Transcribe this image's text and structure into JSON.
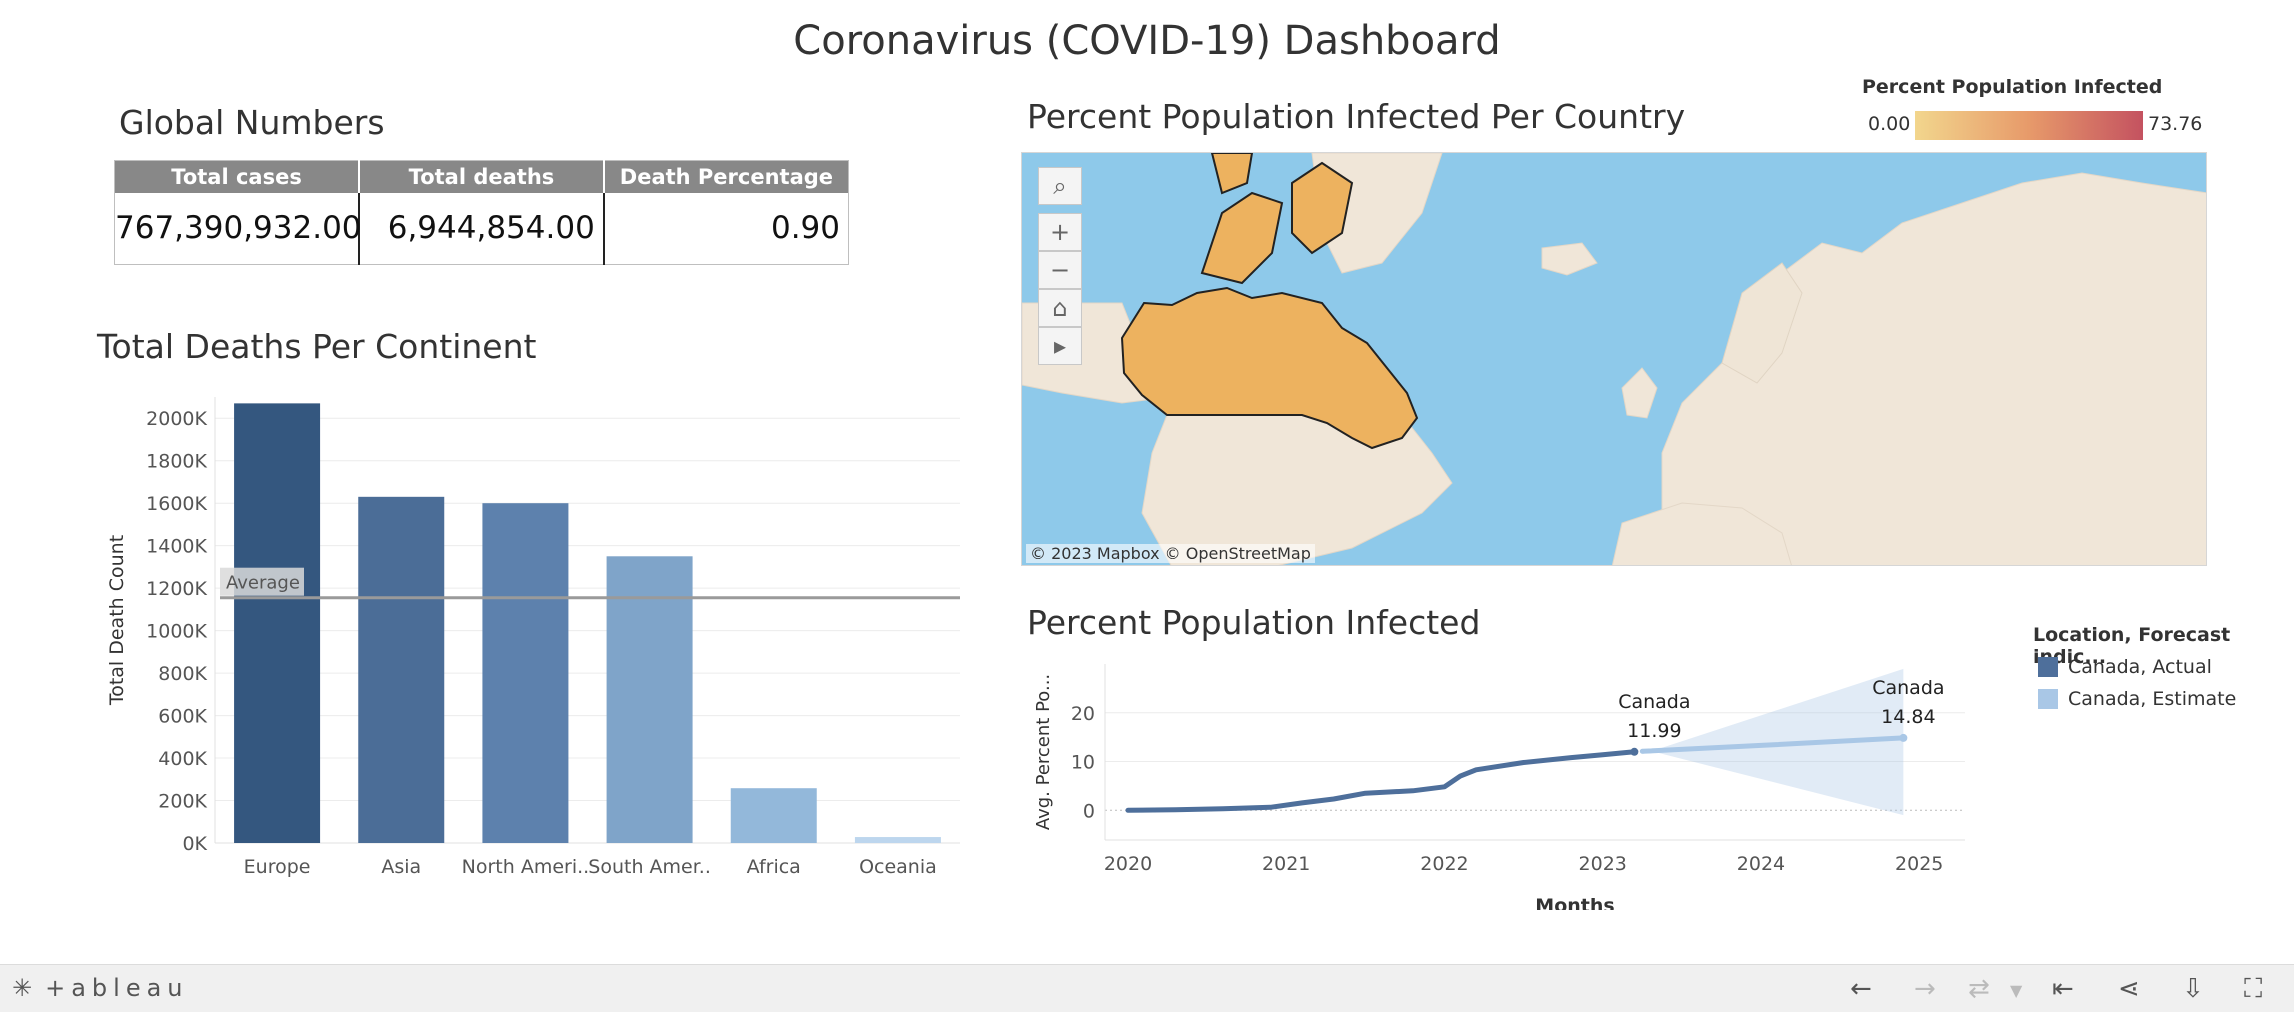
{
  "dashboard": {
    "title": "Coronavirus (COVID-19) Dashboard"
  },
  "global_numbers": {
    "title": "Global Numbers",
    "headers": [
      "Total cases",
      "Total deaths",
      "Death Percentage"
    ],
    "values": [
      "767,390,932.00",
      "6,944,854.00",
      "0.90"
    ]
  },
  "map": {
    "title": "Percent Population Infected Per Country",
    "legend_title": "Percent Population Infected",
    "legend_min": "0.00",
    "legend_max": "73.76",
    "attribution": "© 2023 Mapbox  © OpenStreetMap",
    "colors": {
      "water": "#8ec9ea",
      "land": "#f0e6d8",
      "highlight": "#edb25f"
    },
    "tools": [
      "search-icon",
      "zoom-in-icon",
      "zoom-out-icon",
      "home-icon",
      "play-icon"
    ]
  },
  "footer": {
    "logo": "+ableau",
    "icons": [
      "undo-icon",
      "redo-icon",
      "revert-icon",
      "reset-icon",
      "share-icon",
      "download-icon",
      "fullscreen-icon"
    ]
  },
  "chart_data": [
    {
      "type": "bar",
      "title": "Total Deaths Per Continent",
      "xlabel": "",
      "ylabel": "Total Death Count",
      "categories": [
        "Europe",
        "Asia",
        "North Ameri..",
        "South Amer..",
        "Africa",
        "Oceania"
      ],
      "values": [
        2070000,
        1630000,
        1600000,
        1350000,
        258000,
        28000
      ],
      "colors": [
        "#34577f",
        "#4b6d97",
        "#5d81ad",
        "#7fa4c9",
        "#93b8da",
        "#bdd6ee"
      ],
      "ylim": [
        0,
        2100000
      ],
      "yticks": [
        0,
        200000,
        400000,
        600000,
        800000,
        1000000,
        1200000,
        1400000,
        1600000,
        1800000,
        2000000
      ],
      "ytick_labels": [
        "0K",
        "200K",
        "400K",
        "600K",
        "800K",
        "1000K",
        "1200K",
        "1400K",
        "1600K",
        "1800K",
        "2000K"
      ],
      "reference_line": {
        "label": "Average",
        "value": 1155000
      },
      "grid": true
    },
    {
      "type": "line",
      "title": "Percent Population Infected",
      "xlabel": "Months",
      "ylabel": "Avg. Percent Po...",
      "xlim": [
        2020,
        2025
      ],
      "ylim": [
        -2,
        30
      ],
      "xticks": [
        "2020",
        "2021",
        "2022",
        "2023",
        "2024",
        "2025"
      ],
      "yticks": [
        "0",
        "10",
        "20"
      ],
      "series": [
        {
          "name": "Canada, Actual",
          "color": "#4e6f9b",
          "points": [
            [
              2020.0,
              0.0
            ],
            [
              2020.3,
              0.1
            ],
            [
              2020.6,
              0.3
            ],
            [
              2020.9,
              0.6
            ],
            [
              2021.1,
              1.5
            ],
            [
              2021.3,
              2.3
            ],
            [
              2021.5,
              3.5
            ],
            [
              2021.8,
              4.0
            ],
            [
              2022.0,
              4.8
            ],
            [
              2022.1,
              7.0
            ],
            [
              2022.2,
              8.3
            ],
            [
              2022.5,
              9.8
            ],
            [
              2022.8,
              10.8
            ],
            [
              2023.0,
              11.4
            ],
            [
              2023.2,
              11.99
            ]
          ],
          "end_label": {
            "name": "Canada",
            "value": "11.99"
          }
        },
        {
          "name": "Canada, Estimate",
          "color": "#a9c7e6",
          "points": [
            [
              2023.25,
              12.1
            ],
            [
              2024.0,
              13.3
            ],
            [
              2024.9,
              14.84
            ]
          ],
          "band": {
            "low": [
              [
                2023.25,
                11.5
              ],
              [
                2024.9,
                -1.0
              ]
            ],
            "high": [
              [
                2023.25,
                12.6
              ],
              [
                2024.9,
                29.0
              ]
            ]
          },
          "end_label": {
            "name": "Canada",
            "value": "14.84"
          }
        }
      ],
      "legend": {
        "title": "Location, Forecast indic...",
        "position": "right"
      }
    }
  ]
}
